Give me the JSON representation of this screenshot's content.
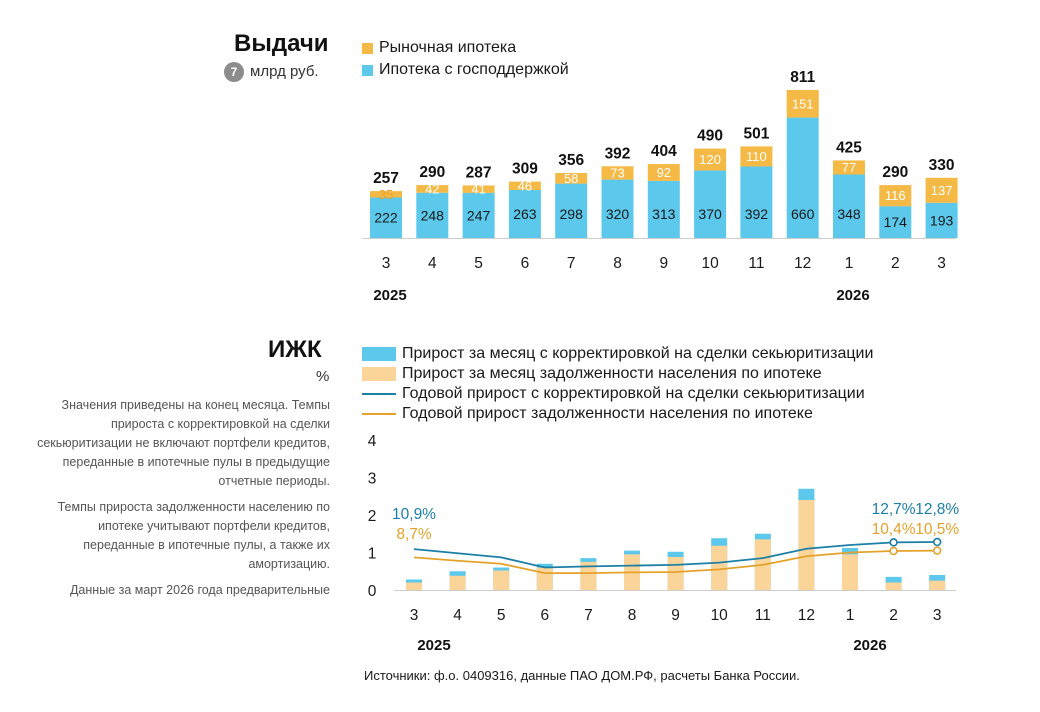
{
  "colors": {
    "market": "#f5b945",
    "state": "#5cc8ec",
    "ijk_bar_blue": "#5cc8ec",
    "ijk_bar_orange": "#fbd49a",
    "line_blue": "#1b7fa6",
    "line_orange": "#e5a22a",
    "axis": "#cccccc"
  },
  "top": {
    "title": "Выдачи",
    "badge": "7",
    "unit": "млрд руб.",
    "legend": [
      {
        "label": "Рыночная ипотека",
        "color_key": "market"
      },
      {
        "label": "Ипотека с господдержкой",
        "color_key": "state"
      }
    ]
  },
  "bottom": {
    "title": "ИЖК",
    "unit": "%",
    "legend": [
      {
        "label": "Прирост за месяц с корректировкой на сделки секьюритизации",
        "kind": "rect",
        "color_key": "ijk_bar_blue"
      },
      {
        "label": "Прирост за месяц задолженности населения по ипотеке",
        "kind": "rect",
        "color_key": "ijk_bar_orange"
      },
      {
        "label": "Годовой прирост с корректировкой на сделки секьюритизации",
        "kind": "line",
        "color_key": "line_blue"
      },
      {
        "label": "Годовой прирост задолженности населения по ипотеке",
        "kind": "line",
        "color_key": "line_orange"
      }
    ],
    "notes": [
      "Значения приведены на конец месяца. Темпы прироста с корректировкой на сделки секьюритизации не включают портфели кредитов, переданные в ипотечные пулы в предыдущие отчетные периоды.",
      "Темпы прироста задолженности населению по ипотеке учитывают портфели кредитов, переданные в ипотечные пулы, а также их амортизацию.",
      "Данные за март 2026 года предварительные"
    ]
  },
  "source": "Источники: ф.о. 0409316, данные ПАО ДОМ.РФ, расчеты Банка России.",
  "chart_data": [
    {
      "type": "bar",
      "stacked": true,
      "title": "Выдачи",
      "unit": "млрд руб.",
      "categories": [
        "3",
        "4",
        "5",
        "6",
        "7",
        "8",
        "9",
        "10",
        "11",
        "12",
        "1",
        "2",
        "3"
      ],
      "year_labels": [
        {
          "label": "2025",
          "at_index": 0
        },
        {
          "label": "2026",
          "at_index": 10
        }
      ],
      "series": [
        {
          "name": "Ипотека с господдержкой",
          "color_key": "state",
          "values": [
            222,
            248,
            247,
            263,
            298,
            320,
            313,
            370,
            392,
            660,
            348,
            174,
            193
          ]
        },
        {
          "name": "Рыночная ипотека",
          "color_key": "market",
          "values": [
            35,
            42,
            41,
            46,
            58,
            73,
            92,
            120,
            110,
            151,
            77,
            116,
            137
          ]
        }
      ],
      "totals": [
        257,
        290,
        287,
        309,
        356,
        392,
        404,
        490,
        501,
        811,
        425,
        290,
        330
      ],
      "ylim": [
        0,
        811
      ],
      "grid": false
    },
    {
      "type": "bar+line",
      "title": "ИЖК",
      "unit": "%",
      "categories": [
        "3",
        "4",
        "5",
        "6",
        "7",
        "8",
        "9",
        "10",
        "11",
        "12",
        "1",
        "2",
        "3"
      ],
      "year_labels": [
        {
          "label": "2025",
          "at_index": 0
        },
        {
          "label": "2026",
          "at_index": 10
        }
      ],
      "yticks": [
        "0",
        "1",
        "2",
        "3",
        "4"
      ],
      "ylim": [
        0,
        4
      ],
      "series": [
        {
          "name": "Прирост за месяц с корректировкой на сделки секьюритизации",
          "kind": "bar",
          "color_key": "ijk_bar_blue",
          "values": [
            0.28,
            0.5,
            0.6,
            0.7,
            0.85,
            1.05,
            1.02,
            1.38,
            1.5,
            2.7,
            1.12,
            0.35,
            0.4
          ]
        },
        {
          "name": "Прирост за месяц задолженности населения по ипотеке",
          "kind": "bar",
          "color_key": "ijk_bar_orange",
          "values": [
            0.2,
            0.38,
            0.52,
            0.6,
            0.75,
            0.95,
            0.88,
            1.18,
            1.35,
            2.4,
            0.95,
            0.2,
            0.25
          ]
        },
        {
          "name": "Годовой прирост с корректировкой на сделки секьюритизации",
          "kind": "line",
          "color_key": "line_blue",
          "values": [
            1.09,
            0.98,
            0.87,
            0.6,
            0.63,
            0.65,
            0.67,
            0.73,
            0.85,
            1.1,
            1.2,
            1.27,
            1.28
          ],
          "labels": [
            {
              "index": 0,
              "text": "10,9%"
            },
            {
              "index": 11,
              "text": "12,7%"
            },
            {
              "index": 12,
              "text": "12,8%"
            }
          ]
        },
        {
          "name": "Годовой прирост задолженности населения по ипотеке",
          "kind": "line",
          "color_key": "line_orange",
          "values": [
            0.87,
            0.78,
            0.7,
            0.45,
            0.45,
            0.47,
            0.48,
            0.55,
            0.67,
            0.9,
            1.0,
            1.04,
            1.05
          ],
          "labels": [
            {
              "index": 0,
              "text": "8,7%"
            },
            {
              "index": 11,
              "text": "10,4%"
            },
            {
              "index": 12,
              "text": "10,5%"
            }
          ]
        }
      ],
      "grid": false
    }
  ]
}
